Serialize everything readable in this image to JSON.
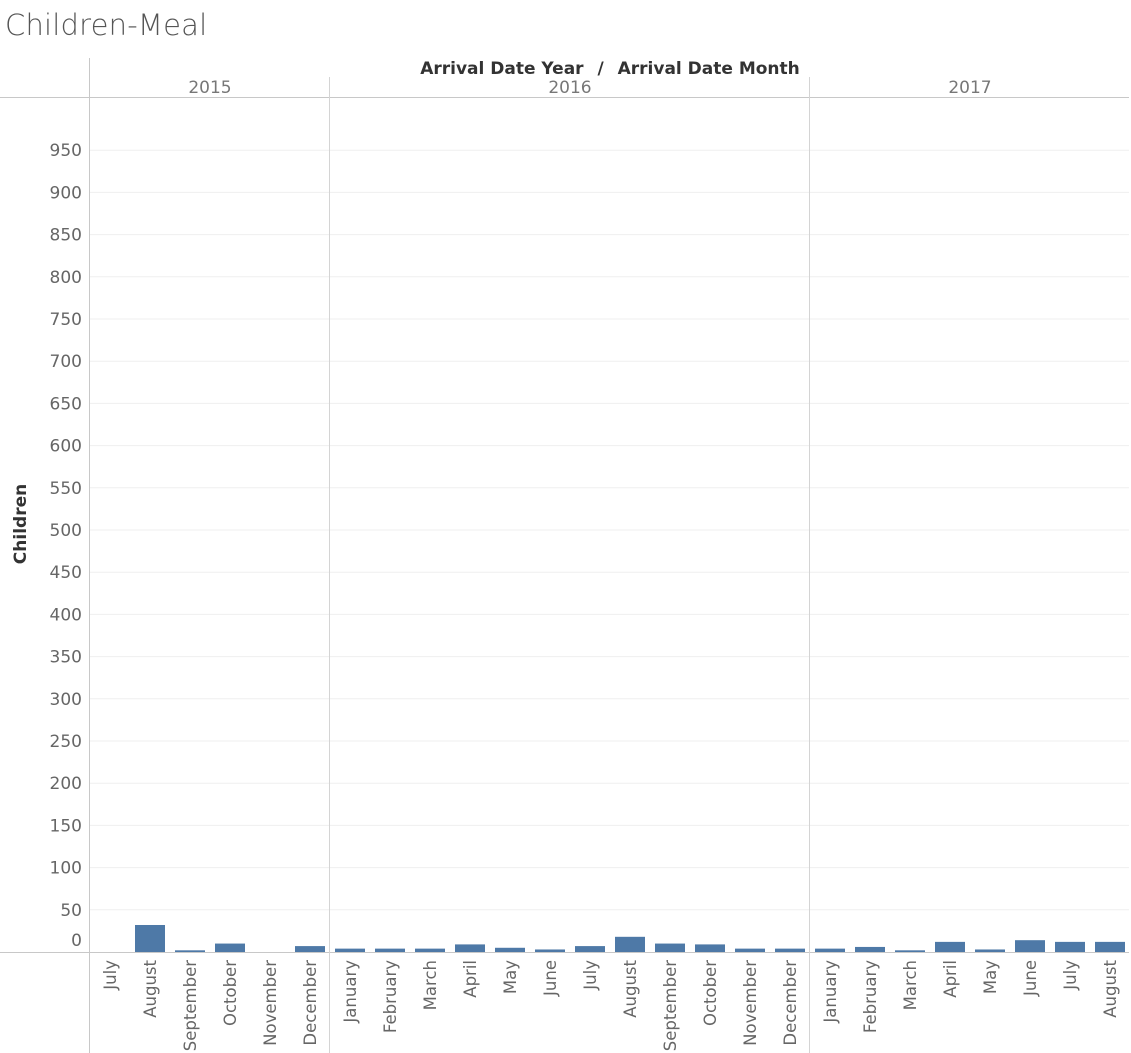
{
  "title": "Children-Meal",
  "chart_data": {
    "type": "bar",
    "title": "Children-Meal",
    "xlabel_parts": [
      "Arrival Date Year",
      "Arrival Date Month"
    ],
    "xlabel_separator": "/",
    "ylabel": "Children",
    "ylim": [
      0,
      950
    ],
    "yticks": [
      0,
      50,
      100,
      150,
      200,
      250,
      300,
      350,
      400,
      450,
      500,
      550,
      600,
      650,
      700,
      750,
      800,
      850,
      900,
      950
    ],
    "grid": true,
    "bar_color": "#4e79a7",
    "groups": [
      {
        "year": "2015",
        "categories": [
          "July",
          "August",
          "September",
          "October",
          "November",
          "December"
        ],
        "values": [
          0,
          32,
          2,
          10,
          0,
          7
        ]
      },
      {
        "year": "2016",
        "categories": [
          "January",
          "February",
          "March",
          "April",
          "May",
          "June",
          "July",
          "August",
          "September",
          "October",
          "November",
          "December"
        ],
        "values": [
          4,
          4,
          4,
          9,
          5,
          3,
          7,
          18,
          10,
          9,
          4,
          4
        ]
      },
      {
        "year": "2017",
        "categories": [
          "January",
          "February",
          "March",
          "April",
          "May",
          "June",
          "July",
          "August"
        ],
        "values": [
          4,
          6,
          2,
          12,
          3,
          14,
          12,
          12
        ]
      }
    ]
  }
}
